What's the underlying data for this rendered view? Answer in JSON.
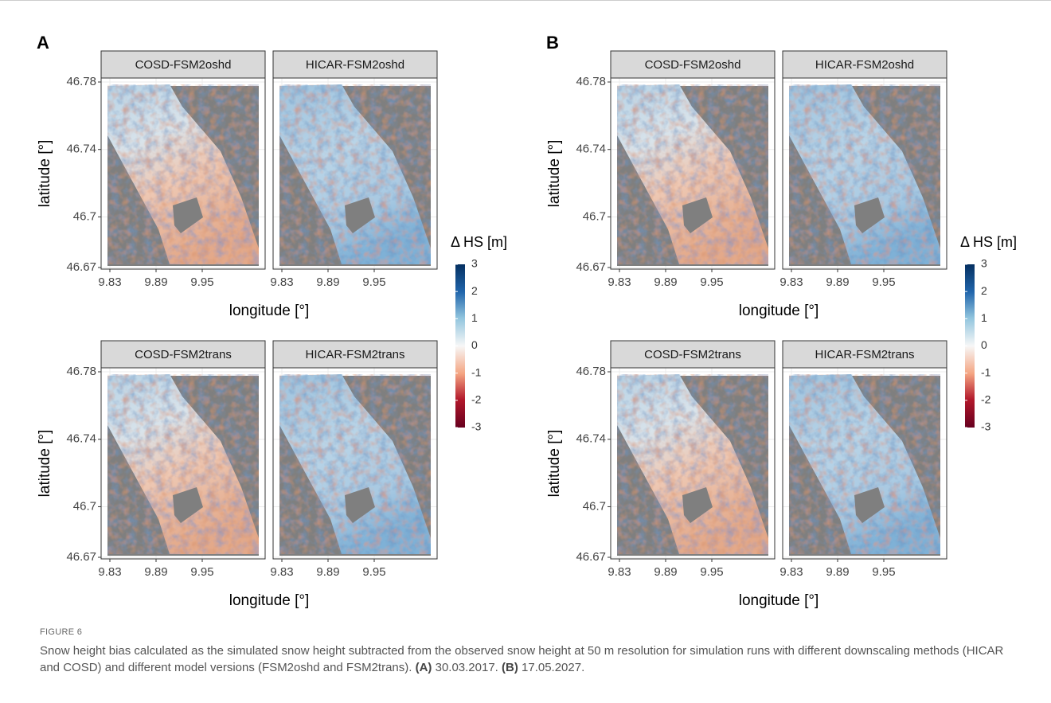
{
  "panels": [
    {
      "label": "A",
      "facets": [
        "COSD-FSM2oshd",
        "HICAR-FSM2oshd",
        "COSD-FSM2trans",
        "HICAR-FSM2trans"
      ],
      "x_label": "longitude [°]",
      "y_label": "latitude [°]",
      "x_ticks": [
        9.83,
        9.89,
        9.95
      ],
      "y_ticks": [
        46.78,
        46.74,
        46.7,
        46.67
      ],
      "legend": {
        "title": "Δ HS [m]",
        "ticks": [
          3,
          2,
          1,
          0,
          -1,
          -2,
          -3
        ]
      }
    },
    {
      "label": "B",
      "facets": [
        "COSD-FSM2oshd",
        "HICAR-FSM2oshd",
        "COSD-FSM2trans",
        "HICAR-FSM2trans"
      ],
      "x_label": "longitude [°]",
      "y_label": "latitude [°]",
      "x_ticks": [
        9.83,
        9.89,
        9.95
      ],
      "y_ticks": [
        46.78,
        46.74,
        46.7,
        46.67
      ],
      "legend": {
        "title": "Δ HS [m]",
        "ticks": [
          3,
          2,
          1,
          0,
          -1,
          -2,
          -3
        ]
      }
    }
  ],
  "caption": {
    "label": "FIGURE 6",
    "segments": [
      {
        "text": "Snow height bias calculated as the simulated snow height subtracted from the observed snow height at 50 m resolution for simulation runs with different downscaling methods (HICAR and COSD) and different model versions (FSM2oshd and FSM2trans). ",
        "bold": false
      },
      {
        "text": "(A)",
        "bold": true
      },
      {
        "text": " 30.03.2017. ",
        "bold": false
      },
      {
        "text": "(B)",
        "bold": true
      },
      {
        "text": " 17.05.2027.",
        "bold": false
      }
    ]
  }
}
